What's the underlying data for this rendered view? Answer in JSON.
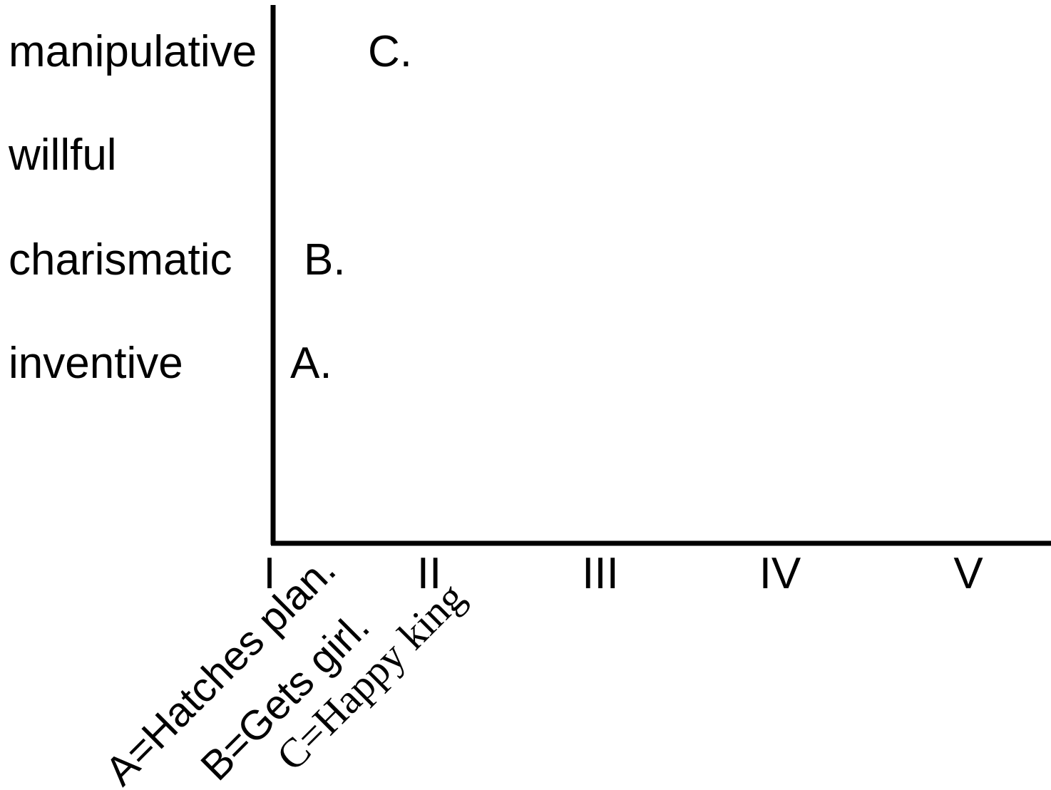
{
  "chart_data": {
    "type": "scatter",
    "title": "",
    "xlabel": "",
    "ylabel": "",
    "x_categories": [
      "I",
      "II",
      "III",
      "IV",
      "V"
    ],
    "y_categories": [
      "inventive",
      "charismatic",
      "willful",
      "manipulative"
    ],
    "points": [
      {
        "label": "A.",
        "x": "I",
        "y": "inventive"
      },
      {
        "label": "B.",
        "x": "I",
        "y": "charismatic"
      },
      {
        "label": "C.",
        "x": "II",
        "y": "manipulative"
      }
    ],
    "legend": [
      {
        "text": "A=Hatches plan."
      },
      {
        "text": "B=Gets girl."
      },
      {
        "text": "C=Happy king"
      }
    ],
    "grid": false,
    "legend_placement": "bottom-left, rotated"
  }
}
